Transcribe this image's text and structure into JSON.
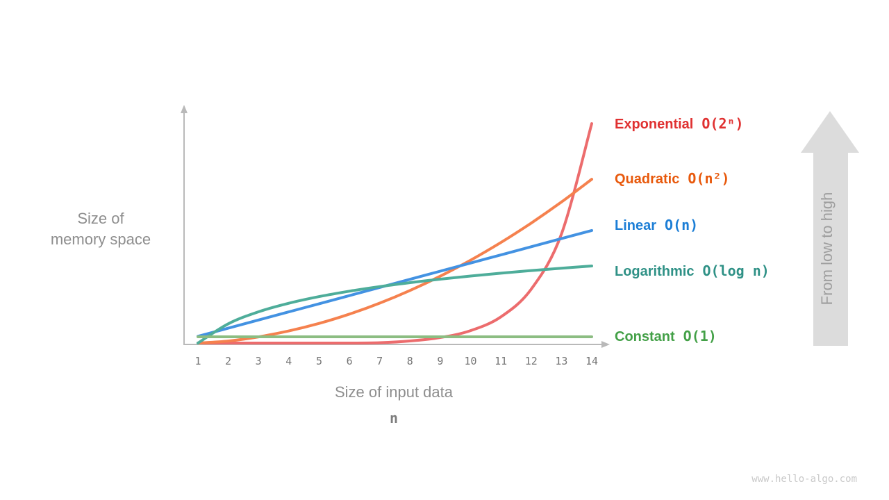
{
  "chart_data": {
    "type": "line",
    "title": "",
    "xlabel": "Size of input data",
    "xlabel_variable": "n",
    "ylabel": "Size of\nmemory space",
    "x": [
      1,
      2,
      3,
      4,
      5,
      6,
      7,
      8,
      9,
      10,
      11,
      12,
      13,
      14
    ],
    "x_ticks": [
      "1",
      "2",
      "3",
      "4",
      "5",
      "6",
      "7",
      "8",
      "9",
      "10",
      "11",
      "12",
      "13",
      "14"
    ],
    "ylim": [
      0,
      1
    ],
    "grid": false,
    "legend_position": "right",
    "series": [
      {
        "name": "Exponential",
        "notation": "O(2ⁿ)",
        "curve_color": "#ec6c6d",
        "label_color": "#e03131",
        "values": [
          0.0001,
          0.0002,
          0.0005,
          0.001,
          0.002,
          0.0039,
          0.0078,
          0.0156,
          0.0313,
          0.0625,
          0.125,
          0.25,
          0.5,
          1.0
        ]
      },
      {
        "name": "Quadratic",
        "notation": "O(n²)",
        "curve_color": "#f5814e",
        "label_color": "#e8590c",
        "values": [
          0.0038,
          0.0153,
          0.0344,
          0.0611,
          0.0954,
          0.1374,
          0.187,
          0.2442,
          0.3091,
          0.3816,
          0.4617,
          0.5495,
          0.6449,
          0.748
        ]
      },
      {
        "name": "Linear",
        "notation": "O(n)",
        "curve_color": "#4392e2",
        "label_color": "#1c7ed6",
        "values": [
          0.0369,
          0.0737,
          0.1106,
          0.1475,
          0.1843,
          0.2212,
          0.2581,
          0.2949,
          0.3318,
          0.3687,
          0.4055,
          0.4424,
          0.4793,
          0.5161
        ]
      },
      {
        "name": "Logarithmic",
        "notation": "O(log n)",
        "curve_color": "#4ead9a",
        "label_color": "#2f9186",
        "values": [
          0.0,
          0.0933,
          0.1479,
          0.1866,
          0.2166,
          0.2412,
          0.262,
          0.2799,
          0.2957,
          0.3099,
          0.3227,
          0.3345,
          0.3452,
          0.3552
        ]
      },
      {
        "name": "Constant",
        "notation": "O(1)",
        "curve_color": "#8cbd82",
        "label_color": "#43a047",
        "values": [
          0.0346,
          0.0346,
          0.0346,
          0.0346,
          0.0346,
          0.0346,
          0.0346,
          0.0346,
          0.0346,
          0.0346,
          0.0346,
          0.0346,
          0.0346,
          0.0346
        ]
      }
    ]
  },
  "annotations": {
    "arrow_label": "From low to high"
  },
  "watermark": "www.hello-algo.com",
  "colors": {
    "axis": "#b9b9b9",
    "tick_text": "#757575",
    "axis_label_text": "#8e8e8e",
    "arrow_fill": "#dcdcdc",
    "arrow_text": "#9e9e9e",
    "watermark_text": "#c9c9c9"
  }
}
